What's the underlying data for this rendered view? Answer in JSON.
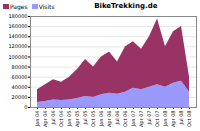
{
  "chart_data": {
    "type": "area",
    "title": "BikeTrekking.de",
    "categories": [
      "Jan 04",
      "Apr 04",
      "Jul 04",
      "Oct 04",
      "Jan 05",
      "Apr 05",
      "Jul 05",
      "Oct 05",
      "Jan 06",
      "Apr 06",
      "Jul 06",
      "Oct 06",
      "Jan 07",
      "Apr 07",
      "Jul 07",
      "Oct 07",
      "Jan 08",
      "Apr 08",
      "Jul 08",
      "Oct 08"
    ],
    "series": [
      {
        "name": "Visits",
        "color": "#9999ff",
        "values": [
          10000,
          12000,
          15000,
          14000,
          15000,
          18000,
          22000,
          20000,
          25000,
          28000,
          26000,
          30000,
          38000,
          35000,
          40000,
          45000,
          40000,
          48000,
          52000,
          30000
        ]
      },
      {
        "name": "Pages",
        "color": "#993366",
        "values": [
          25000,
          33000,
          40000,
          36000,
          45000,
          57000,
          73000,
          60000,
          75000,
          82000,
          64000,
          90000,
          92000,
          80000,
          100000,
          130000,
          80000,
          102000,
          108000,
          30000
        ]
      }
    ],
    "ylim": [
      0,
      180000
    ],
    "yticks": [
      0,
      20000,
      40000,
      60000,
      80000,
      100000,
      120000,
      140000,
      160000,
      180000
    ],
    "stacked": true,
    "grid": true,
    "legend": "top-left"
  }
}
